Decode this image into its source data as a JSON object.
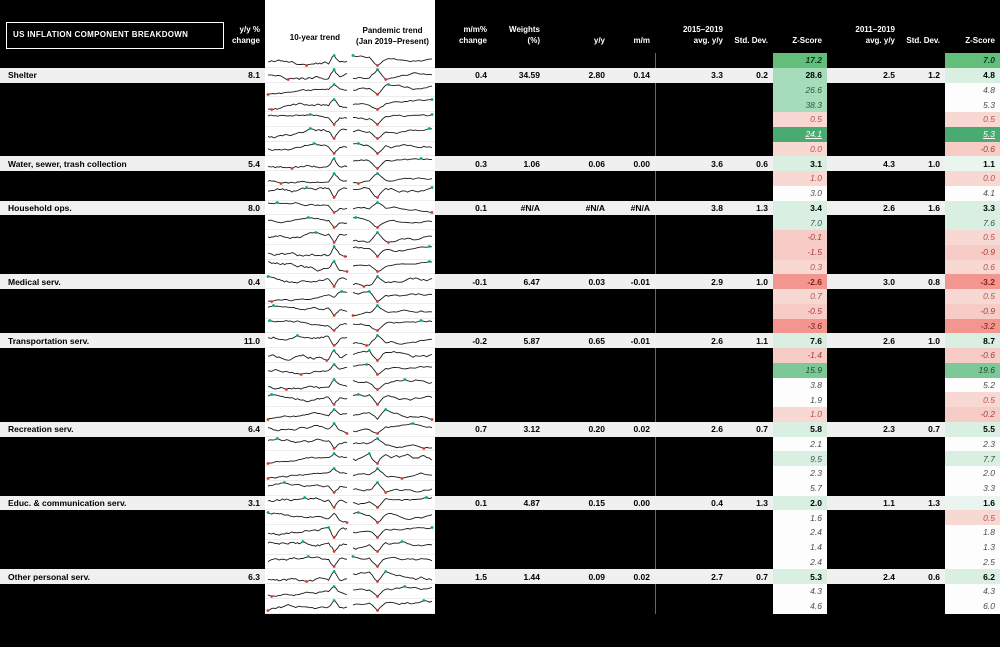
{
  "title": "US INFLATION COMPONENT BREAKDOWN",
  "columns": {
    "yoy": "y/y %\nchange",
    "trend10": "10-year trend",
    "pandemic": "Pandemic trend\n(Jan 2019–Present)",
    "mm_change": "m/m%\nchange",
    "weights": "Weights\n(%)",
    "yy": "y/y",
    "mm": "m/m",
    "avg_2015_2019": "2015–2019\navg. y/y",
    "std_dev_1": "Std. Dev.",
    "zscore_1": "Z-Score",
    "avg_2011_2019": "2011–2019\navg. y/y",
    "std_dev_2": "Std. Dev.",
    "zscore_2": "Z-Score"
  },
  "colors": {
    "background": "#000000",
    "label_row_bg": "#f0f0f0",
    "spark_line": "#1a1a1a",
    "spark_low_dot": "#d63b2f",
    "spark_high_dot": "#00a97f",
    "z_green_solid": "#63be7b",
    "z_green_highlight": "#4aab72",
    "z_green_medium": "#a5dcba",
    "z_green_light": "#d9efe2",
    "z_pink_light": "#f8d8d3",
    "z_red_strong": "#f2968f"
  },
  "groups": [
    {
      "name": "headline",
      "label_row": null,
      "hidden_rows": [
        {
          "z1": "17.2",
          "z2": "7.0",
          "style": "solid_green"
        }
      ]
    },
    {
      "name": "shelter",
      "label_row": {
        "label": "Shelter",
        "yoy": "8.1",
        "mm_change": "0.4",
        "weights": "34.59",
        "yy": "2.80",
        "mm": "0.14",
        "avg1": "3.3",
        "sd1": "0.2",
        "z1": "28.6",
        "avg2": "2.5",
        "sd2": "1.2",
        "z2": "4.8"
      },
      "hidden_rows": [
        {
          "z1": "26.6",
          "z2": "4.8"
        },
        {
          "z1": "38.3",
          "z2": "5.3"
        },
        {
          "z1": "0.5",
          "z2": "0.5"
        },
        {
          "z1": "24.1",
          "z2": "5.3",
          "style": "highlight"
        },
        {
          "z1": "0.0",
          "z2": "-0.6"
        }
      ]
    },
    {
      "name": "water-sewer-trash",
      "label_row": {
        "label": "Water, sewer, trash collection",
        "yoy": "5.4",
        "mm_change": "0.3",
        "weights": "1.06",
        "yy": "0.06",
        "mm": "0.00",
        "avg1": "3.6",
        "sd1": "0.6",
        "z1": "3.1",
        "avg2": "4.3",
        "sd2": "1.0",
        "z2": "1.1"
      },
      "hidden_rows": [
        {
          "z1": "1.0",
          "z2": "0.0"
        },
        {
          "z1": "3.0",
          "z2": "4.1"
        }
      ]
    },
    {
      "name": "household-ops",
      "label_row": {
        "label": "Household ops.",
        "yoy": "8.0",
        "mm_change": "0.1",
        "weights": "#N/A",
        "yy": "#N/A",
        "mm": "#N/A",
        "avg1": "3.8",
        "sd1": "1.3",
        "z1": "3.4",
        "avg2": "2.6",
        "sd2": "1.6",
        "z2": "3.3"
      },
      "hidden_rows": [
        {
          "z1": "7.0",
          "z2": "7.6"
        },
        {
          "z1": "-0.1",
          "z2": "0.5"
        },
        {
          "z1": "-1.5",
          "z2": "-0.9"
        },
        {
          "z1": "0.3",
          "z2": "0.6"
        }
      ]
    },
    {
      "name": "medical-serv",
      "label_row": {
        "label": "Medical serv.",
        "yoy": "0.4",
        "mm_change": "-0.1",
        "weights": "6.47",
        "yy": "0.03",
        "mm": "-0.01",
        "avg1": "2.9",
        "sd1": "1.0",
        "z1": "-2.6",
        "avg2": "3.0",
        "sd2": "0.8",
        "z2": "-3.2"
      },
      "hidden_rows": [
        {
          "z1": "0.7",
          "z2": "0.5"
        },
        {
          "z1": "-0.5",
          "z2": "-0.9"
        },
        {
          "z1": "-3.6",
          "z2": "-3.2"
        }
      ]
    },
    {
      "name": "transportation-serv",
      "label_row": {
        "label": "Transportation serv.",
        "yoy": "11.0",
        "mm_change": "-0.2",
        "weights": "5.87",
        "yy": "0.65",
        "mm": "-0.01",
        "avg1": "2.6",
        "sd1": "1.1",
        "z1": "7.6",
        "avg2": "2.6",
        "sd2": "1.0",
        "z2": "8.7"
      },
      "hidden_rows": [
        {
          "z1": "-1.4",
          "z2": "-0.6"
        },
        {
          "z1": "15.9",
          "z2": "19.6"
        },
        {
          "z1": "3.8",
          "z2": "5.2"
        },
        {
          "z1": "1.9",
          "z2": "0.5"
        },
        {
          "z1": "1.0",
          "z2": "-0.2"
        }
      ]
    },
    {
      "name": "recreation-serv",
      "label_row": {
        "label": "Recreation serv.",
        "yoy": "6.4",
        "mm_change": "0.7",
        "weights": "3.12",
        "yy": "0.20",
        "mm": "0.02",
        "avg1": "2.6",
        "sd1": "0.7",
        "z1": "5.8",
        "avg2": "2.3",
        "sd2": "0.7",
        "z2": "5.5"
      },
      "hidden_rows": [
        {
          "z1": "2.1",
          "z2": "2.3"
        },
        {
          "z1": "9.5",
          "z2": "7.7"
        },
        {
          "z1": "2.3",
          "z2": "2.0"
        },
        {
          "z1": "5.7",
          "z2": "3.3"
        }
      ]
    },
    {
      "name": "educ-communication-serv",
      "label_row": {
        "label": "Educ. & communication serv.",
        "yoy": "3.1",
        "mm_change": "0.1",
        "weights": "4.87",
        "yy": "0.15",
        "mm": "0.00",
        "avg1": "0.4",
        "sd1": "1.3",
        "z1": "2.0",
        "avg2": "1.1",
        "sd2": "1.3",
        "z2": "1.6"
      },
      "hidden_rows": [
        {
          "z1": "1.6",
          "z2": "0.5"
        },
        {
          "z1": "2.4",
          "z2": "1.8"
        },
        {
          "z1": "1.4",
          "z2": "1.3"
        },
        {
          "z1": "2.4",
          "z2": "2.5"
        }
      ]
    },
    {
      "name": "other-personal-serv",
      "label_row": {
        "label": "Other personal serv.",
        "yoy": "6.3",
        "mm_change": "1.5",
        "weights": "1.44",
        "yy": "0.09",
        "mm": "0.02",
        "avg1": "2.7",
        "sd1": "0.7",
        "z1": "5.3",
        "avg2": "2.4",
        "sd2": "0.6",
        "z2": "6.2"
      },
      "hidden_rows": [
        {
          "z1": "4.3",
          "z2": "4.3"
        },
        {
          "z1": "4.6",
          "z2": "6.0"
        }
      ]
    }
  ]
}
